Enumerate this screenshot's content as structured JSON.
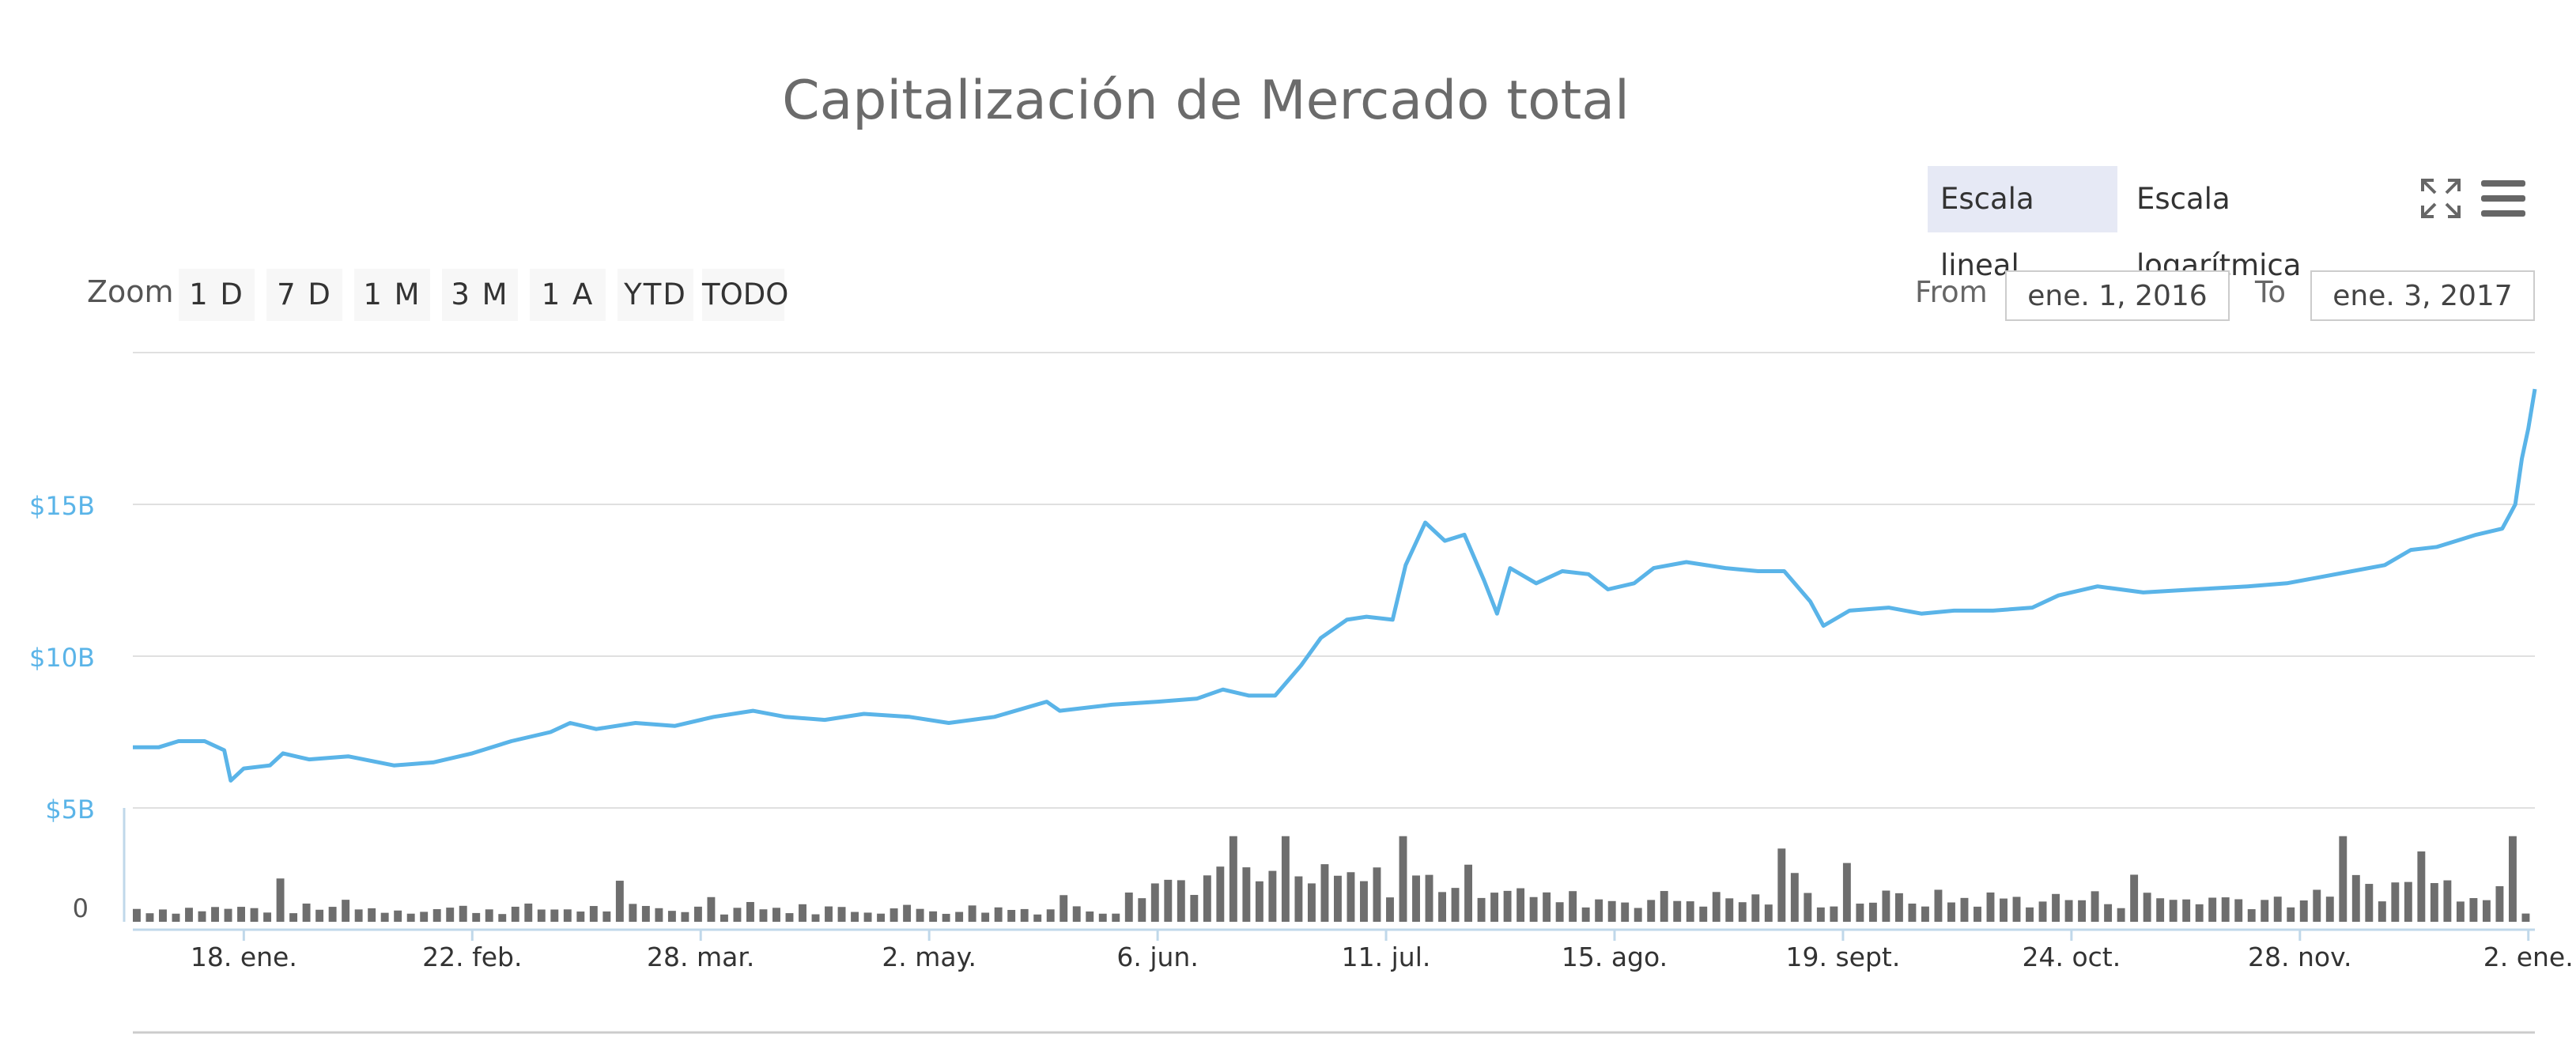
{
  "title": "Capitalización de Mercado total",
  "toolbar": {
    "linear_scale": "Escala lineal",
    "log_scale": "Escala logarítmica",
    "active_scale": "linear",
    "fullscreen_icon": "fullscreen-icon",
    "menu_icon": "hamburger-menu-icon"
  },
  "zoom": {
    "label": "Zoom",
    "buttons": [
      "1 D",
      "7 D",
      "1 M",
      "3 M",
      "1 A",
      "YTD",
      "TODO"
    ]
  },
  "range": {
    "from_label": "From",
    "from_value": "ene. 1, 2016",
    "to_label": "To",
    "to_value": "ene. 3, 2017"
  },
  "colors": {
    "line": "#5ab4e8",
    "volume_bars": "#6e6e6e",
    "axis_label": "#5ab4e8",
    "grid": "#e0e0e0",
    "active_scale_bg": "#e6e9f5"
  },
  "chart_data": {
    "type": "line",
    "title": "Capitalización de Mercado total",
    "x_start": "2016-01-01",
    "x_end": "2017-01-03",
    "x_ticks": [
      {
        "date": "2016-01-18",
        "label": "18. ene."
      },
      {
        "date": "2016-02-22",
        "label": "22. feb."
      },
      {
        "date": "2016-03-28",
        "label": "28. mar."
      },
      {
        "date": "2016-05-02",
        "label": "2. may."
      },
      {
        "date": "2016-06-06",
        "label": "6. jun."
      },
      {
        "date": "2016-07-11",
        "label": "11. jul."
      },
      {
        "date": "2016-08-15",
        "label": "15. ago."
      },
      {
        "date": "2016-09-19",
        "label": "19. sept."
      },
      {
        "date": "2016-10-24",
        "label": "24. oct."
      },
      {
        "date": "2016-11-28",
        "label": "28. nov."
      },
      {
        "date": "2017-01-02",
        "label": "2. ene."
      }
    ],
    "y_ticks": [
      {
        "value": 5,
        "label": "$5B"
      },
      {
        "value": 10,
        "label": "$10B"
      },
      {
        "value": 15,
        "label": "$15B"
      }
    ],
    "ylim": [
      5,
      20
    ],
    "y_unit": "billion USD",
    "volume_axis_label": "0",
    "grid": true,
    "series": [
      {
        "values_billions": [
          [
            "2016-01-01",
            7.0
          ],
          [
            "2016-01-05",
            7.0
          ],
          [
            "2016-01-08",
            7.2
          ],
          [
            "2016-01-12",
            7.2
          ],
          [
            "2016-01-15",
            6.9
          ],
          [
            "2016-01-16",
            5.9
          ],
          [
            "2016-01-18",
            6.3
          ],
          [
            "2016-01-22",
            6.4
          ],
          [
            "2016-01-24",
            6.8
          ],
          [
            "2016-01-28",
            6.6
          ],
          [
            "2016-02-03",
            6.7
          ],
          [
            "2016-02-10",
            6.4
          ],
          [
            "2016-02-16",
            6.5
          ],
          [
            "2016-02-22",
            6.8
          ],
          [
            "2016-02-28",
            7.2
          ],
          [
            "2016-03-05",
            7.5
          ],
          [
            "2016-03-08",
            7.8
          ],
          [
            "2016-03-12",
            7.6
          ],
          [
            "2016-03-18",
            7.8
          ],
          [
            "2016-03-24",
            7.7
          ],
          [
            "2016-03-30",
            8.0
          ],
          [
            "2016-04-05",
            8.2
          ],
          [
            "2016-04-10",
            8.0
          ],
          [
            "2016-04-16",
            7.9
          ],
          [
            "2016-04-22",
            8.1
          ],
          [
            "2016-04-29",
            8.0
          ],
          [
            "2016-05-05",
            7.8
          ],
          [
            "2016-05-12",
            8.0
          ],
          [
            "2016-05-20",
            8.5
          ],
          [
            "2016-05-22",
            8.2
          ],
          [
            "2016-05-30",
            8.4
          ],
          [
            "2016-06-06",
            8.5
          ],
          [
            "2016-06-12",
            8.6
          ],
          [
            "2016-06-16",
            8.9
          ],
          [
            "2016-06-20",
            8.7
          ],
          [
            "2016-06-24",
            8.7
          ],
          [
            "2016-06-28",
            9.7
          ],
          [
            "2016-07-01",
            10.6
          ],
          [
            "2016-07-05",
            11.2
          ],
          [
            "2016-07-08",
            11.3
          ],
          [
            "2016-07-12",
            11.2
          ],
          [
            "2016-07-14",
            13.0
          ],
          [
            "2016-07-17",
            14.4
          ],
          [
            "2016-07-20",
            13.8
          ],
          [
            "2016-07-23",
            14.0
          ],
          [
            "2016-07-26",
            12.5
          ],
          [
            "2016-07-28",
            11.4
          ],
          [
            "2016-07-30",
            12.9
          ],
          [
            "2016-08-03",
            12.4
          ],
          [
            "2016-08-07",
            12.8
          ],
          [
            "2016-08-11",
            12.7
          ],
          [
            "2016-08-14",
            12.2
          ],
          [
            "2016-08-18",
            12.4
          ],
          [
            "2016-08-21",
            12.9
          ],
          [
            "2016-08-26",
            13.1
          ],
          [
            "2016-09-01",
            12.9
          ],
          [
            "2016-09-06",
            12.8
          ],
          [
            "2016-09-10",
            12.8
          ],
          [
            "2016-09-14",
            11.8
          ],
          [
            "2016-09-16",
            11.0
          ],
          [
            "2016-09-20",
            11.5
          ],
          [
            "2016-09-26",
            11.6
          ],
          [
            "2016-10-01",
            11.4
          ],
          [
            "2016-10-06",
            11.5
          ],
          [
            "2016-10-12",
            11.5
          ],
          [
            "2016-10-18",
            11.6
          ],
          [
            "2016-10-22",
            12.0
          ],
          [
            "2016-10-28",
            12.3
          ],
          [
            "2016-11-04",
            12.1
          ],
          [
            "2016-11-12",
            12.2
          ],
          [
            "2016-11-20",
            12.3
          ],
          [
            "2016-11-26",
            12.4
          ],
          [
            "2016-12-01",
            12.6
          ],
          [
            "2016-12-06",
            12.8
          ],
          [
            "2016-12-11",
            13.0
          ],
          [
            "2016-12-15",
            13.5
          ],
          [
            "2016-12-19",
            13.6
          ],
          [
            "2016-12-22",
            13.8
          ],
          [
            "2016-12-25",
            14.0
          ],
          [
            "2016-12-27",
            14.1
          ],
          [
            "2016-12-29",
            14.2
          ],
          [
            "2016-12-30",
            14.6
          ],
          [
            "2016-12-31",
            15.0
          ],
          [
            "2017-01-01",
            16.5
          ],
          [
            "2017-01-02",
            17.5
          ],
          [
            "2017-01-03",
            18.8
          ]
        ]
      }
    ]
  }
}
